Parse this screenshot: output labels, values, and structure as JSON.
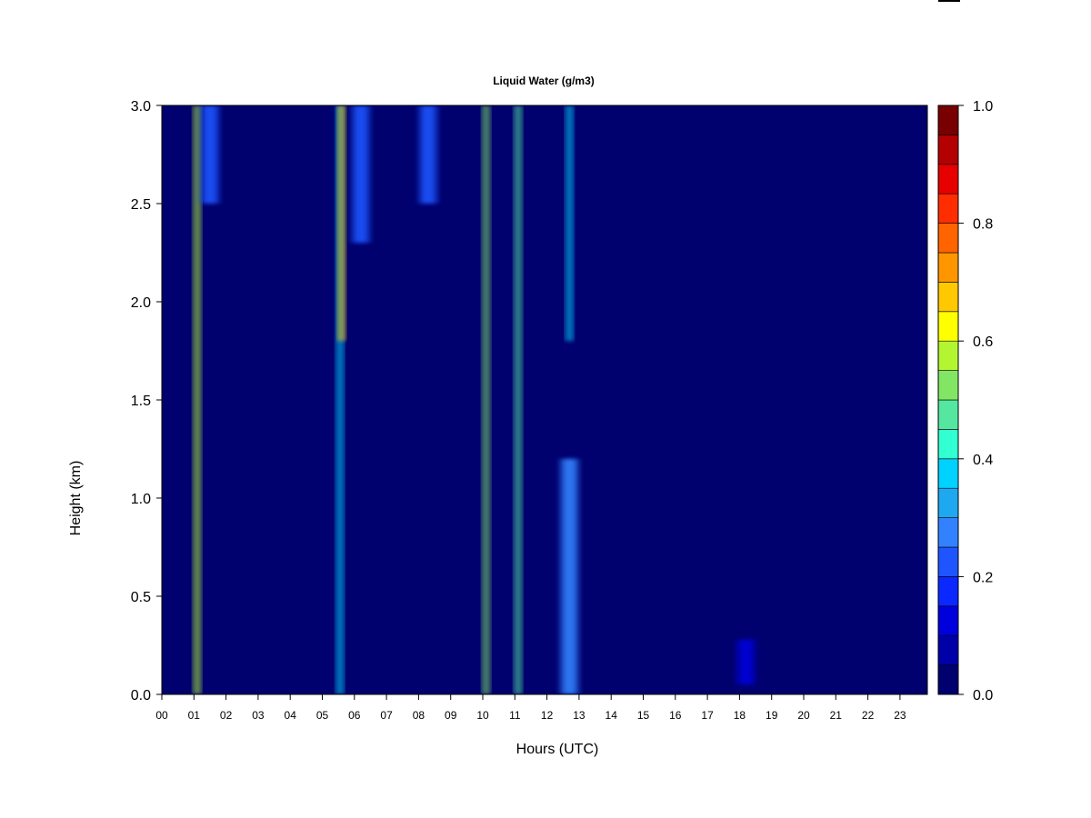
{
  "chart_data": {
    "type": "heatmap",
    "title": "Liquid Water (g/m3)",
    "xlabel": "Hours (UTC)",
    "ylabel": "Height (km)",
    "x_ticks": [
      "00",
      "01",
      "02",
      "03",
      "04",
      "05",
      "06",
      "07",
      "08",
      "09",
      "10",
      "11",
      "12",
      "13",
      "14",
      "15",
      "16",
      "17",
      "18",
      "19",
      "20",
      "21",
      "22",
      "23"
    ],
    "y_ticks": [
      "0.0",
      "0.5",
      "1.0",
      "1.5",
      "2.0",
      "2.5",
      "3.0"
    ],
    "xlim": [
      0,
      23.85
    ],
    "ylim": [
      0,
      3.0
    ],
    "colorbar": {
      "range": [
        0.0,
        1.0
      ],
      "levels": 20,
      "tick_labels": [
        "0.0",
        "0.2",
        "0.4",
        "0.6",
        "0.8",
        "1.0"
      ],
      "colors": [
        "#00006e",
        "#0000a8",
        "#0000dc",
        "#0a28ff",
        "#1e55ff",
        "#3282ff",
        "#1ea8f0",
        "#00d2ff",
        "#32ffd2",
        "#55e6a0",
        "#82e664",
        "#b4f532",
        "#ffff00",
        "#ffc800",
        "#ff9600",
        "#ff6400",
        "#ff2d00",
        "#e60000",
        "#b40000",
        "#780000"
      ]
    },
    "features": [
      {
        "hour": 1.1,
        "hmin": 0.0,
        "hmax": 3.0,
        "level": 0.55
      },
      {
        "hour": 1.5,
        "hmin": 2.5,
        "hmax": 3.0,
        "level": 0.2
      },
      {
        "hour": 5.55,
        "hmin": 0.0,
        "hmax": 3.0,
        "level": 0.35
      },
      {
        "hour": 5.6,
        "hmin": 1.8,
        "hmax": 3.0,
        "level": 0.65
      },
      {
        "hour": 6.2,
        "hmin": 2.3,
        "hmax": 3.0,
        "level": 0.2
      },
      {
        "hour": 8.3,
        "hmin": 2.5,
        "hmax": 3.0,
        "level": 0.2
      },
      {
        "hour": 10.1,
        "hmin": 0.0,
        "hmax": 3.0,
        "level": 0.5
      },
      {
        "hour": 11.1,
        "hmin": 0.0,
        "hmax": 3.0,
        "level": 0.45
      },
      {
        "hour": 12.7,
        "hmin": 1.8,
        "hmax": 3.0,
        "level": 0.35
      },
      {
        "hour": 12.7,
        "hmin": 0.0,
        "hmax": 1.2,
        "level": 0.25
      },
      {
        "hour": 18.2,
        "hmin": 0.05,
        "hmax": 0.28,
        "level": 0.1
      }
    ]
  }
}
